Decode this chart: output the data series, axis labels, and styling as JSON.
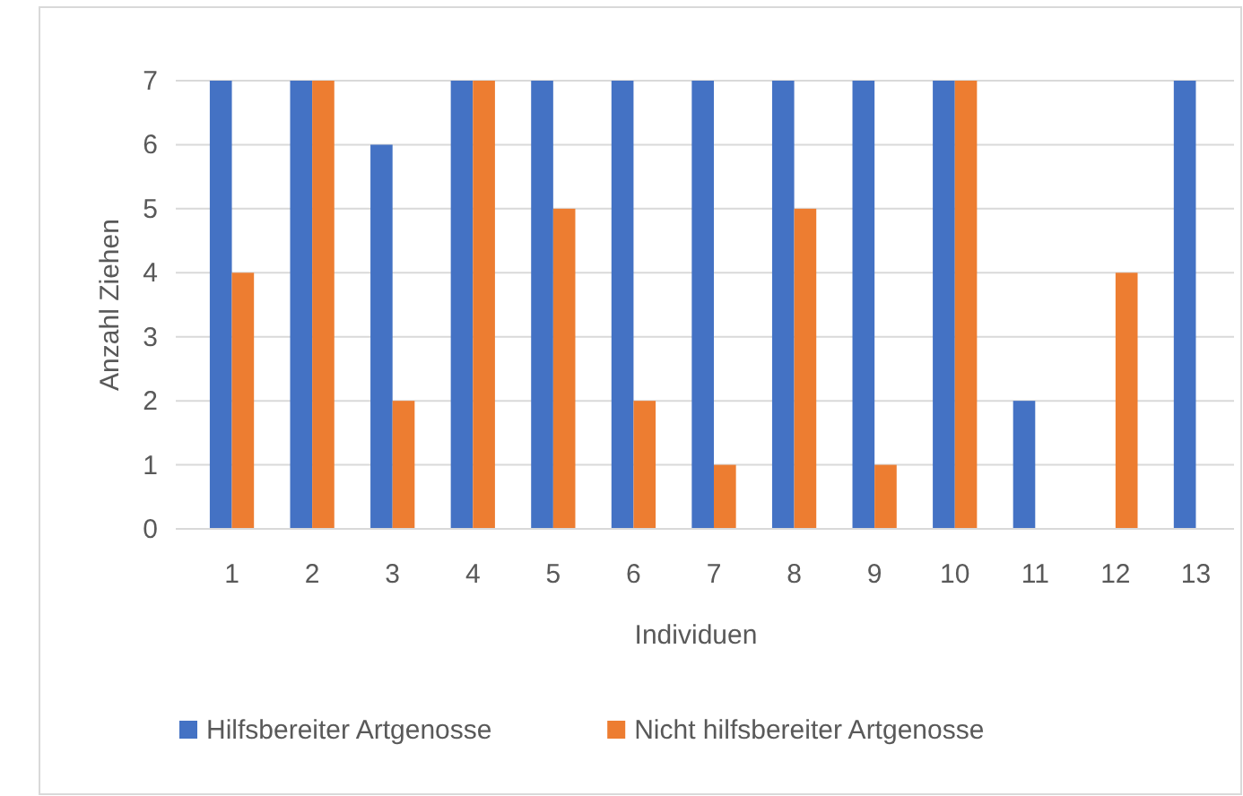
{
  "chart_data": {
    "type": "bar",
    "xlabel": "Individuen",
    "ylabel": "Anzahl Ziehen",
    "categories": [
      "1",
      "2",
      "3",
      "4",
      "5",
      "6",
      "7",
      "8",
      "9",
      "10",
      "11",
      "12",
      "13"
    ],
    "series": [
      {
        "name": "Hilfsbereiter Artgenosse",
        "color": "#4472c4",
        "values": [
          7,
          7,
          6,
          7,
          7,
          7,
          7,
          7,
          7,
          7,
          2,
          0,
          7
        ]
      },
      {
        "name": "Nicht hilfsbereiter Artgenosse",
        "color": "#ed7d31",
        "values": [
          4,
          7,
          2,
          7,
          5,
          2,
          1,
          5,
          1,
          7,
          0,
          4,
          0
        ]
      }
    ],
    "ylim": [
      0,
      7
    ],
    "yticks": [
      0,
      1,
      2,
      3,
      4,
      5,
      6,
      7
    ],
    "grid": "y",
    "legend": "bottom"
  }
}
